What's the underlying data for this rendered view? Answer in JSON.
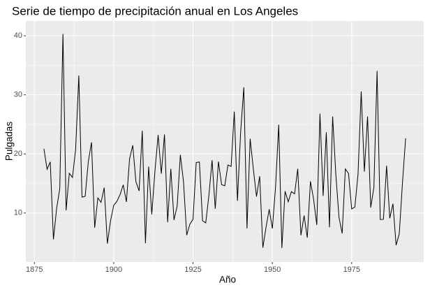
{
  "chart_data": {
    "type": "line",
    "title": "Serie de tiempo de precipitación anual en Los Angeles",
    "x_label": "Año",
    "y_label": "Pulgadas",
    "x": [
      1878,
      1879,
      1880,
      1881,
      1882,
      1883,
      1884,
      1885,
      1886,
      1887,
      1888,
      1889,
      1890,
      1891,
      1892,
      1893,
      1894,
      1895,
      1896,
      1897,
      1898,
      1899,
      1900,
      1901,
      1902,
      1903,
      1904,
      1905,
      1906,
      1907,
      1908,
      1909,
      1910,
      1911,
      1912,
      1913,
      1914,
      1915,
      1916,
      1917,
      1918,
      1919,
      1920,
      1921,
      1922,
      1923,
      1924,
      1925,
      1926,
      1927,
      1928,
      1929,
      1930,
      1931,
      1932,
      1933,
      1934,
      1935,
      1936,
      1937,
      1938,
      1939,
      1940,
      1941,
      1942,
      1943,
      1944,
      1945,
      1946,
      1947,
      1948,
      1949,
      1950,
      1951,
      1952,
      1953,
      1954,
      1955,
      1956,
      1957,
      1958,
      1959,
      1960,
      1961,
      1962,
      1963,
      1964,
      1965,
      1966,
      1967,
      1968,
      1969,
      1970,
      1971,
      1972,
      1973,
      1974,
      1975,
      1976,
      1977,
      1978,
      1979,
      1980,
      1981,
      1982,
      1983,
      1984,
      1985,
      1986,
      1987,
      1988,
      1989,
      1990,
      1991,
      1992
    ],
    "values": [
      20.86,
      17.41,
      18.65,
      5.53,
      10.74,
      14.14,
      40.29,
      10.45,
      16.72,
      16.02,
      20.82,
      33.26,
      12.69,
      12.84,
      18.72,
      21.96,
      7.51,
      12.55,
      11.8,
      14.28,
      4.83,
      8.69,
      11.3,
      11.96,
      13.12,
      14.77,
      11.88,
      19.19,
      21.46,
      15.3,
      13.74,
      23.92,
      4.89,
      17.85,
      9.78,
      17.17,
      23.21,
      16.67,
      23.29,
      8.45,
      17.49,
      8.82,
      11.18,
      19.85,
      15.27,
      6.25,
      8.11,
      8.94,
      18.56,
      18.63,
      8.69,
      8.32,
      13.02,
      18.93,
      10.72,
      18.7,
      14.8,
      14.61,
      18.12,
      17.88,
      27.16,
      12.06,
      23.7,
      31.28,
      7.4,
      22.57,
      17.45,
      12.78,
      16.22,
      4.13,
      7.59,
      10.63,
      7.38,
      14.33,
      24.95,
      4.08,
      13.69,
      11.89,
      13.62,
      13.24,
      17.49,
      6.23,
      9.57,
      5.83,
      15.37,
      12.31,
      7.98,
      26.81,
      12.91,
      23.66,
      7.58,
      26.32,
      16.54,
      9.26,
      6.54,
      17.45,
      16.69,
      10.7,
      11.01,
      16.58,
      30.57,
      17.0,
      26.33,
      10.92,
      14.35,
      34.04,
      8.9,
      8.92,
      18.0,
      9.11,
      11.57,
      4.56,
      6.49,
      15.07,
      22.65
    ],
    "color": "#000000",
    "xlim": [
      1872.3,
      1997.7
    ],
    "xticks": [
      1875,
      1900,
      1925,
      1950,
      1975
    ],
    "ylim": [
      1.7,
      42.5
    ],
    "yticks": [
      10,
      20,
      30,
      40
    ],
    "grid": true
  }
}
